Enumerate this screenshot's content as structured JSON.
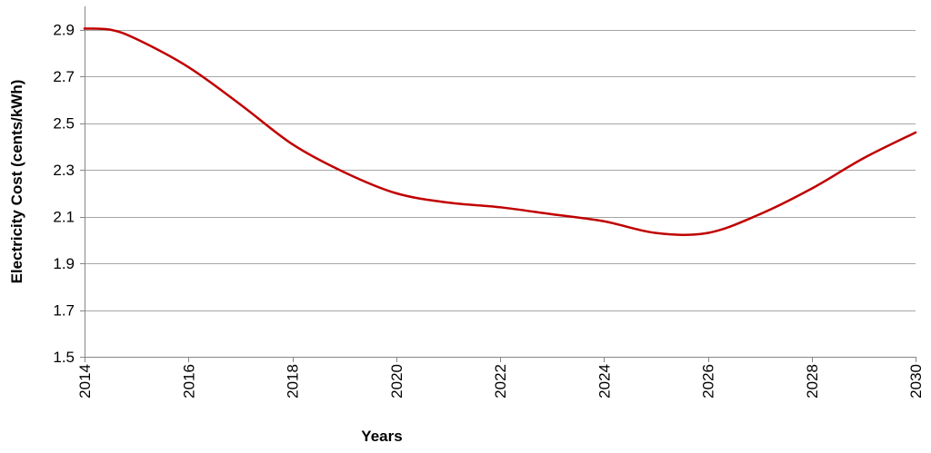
{
  "chart_data": {
    "type": "line",
    "title": "",
    "xlabel": "Years",
    "ylabel": "Electricity Cost (cents/kWh)",
    "xlim": [
      2014,
      2030
    ],
    "ylim": [
      1.5,
      3.0
    ],
    "x_ticks": [
      "2014",
      "2016",
      "2018",
      "2020",
      "2022",
      "2024",
      "2026",
      "2028",
      "2030"
    ],
    "y_ticks": [
      "1.5",
      "1.7",
      "1.9",
      "2.1",
      "2.3",
      "2.5",
      "2.7",
      "2.9"
    ],
    "grid": true,
    "legend": "none",
    "series": [
      {
        "color": "#c00000",
        "x": [
          2014,
          2014.5,
          2015,
          2016,
          2017,
          2018,
          2019,
          2020,
          2021,
          2022,
          2023,
          2024,
          2025,
          2026,
          2027,
          2028,
          2029,
          2030
        ],
        "y": [
          2.905,
          2.9,
          2.86,
          2.74,
          2.58,
          2.41,
          2.29,
          2.2,
          2.16,
          2.14,
          2.11,
          2.08,
          2.03,
          2.03,
          2.11,
          2.22,
          2.35,
          2.46
        ]
      }
    ]
  }
}
